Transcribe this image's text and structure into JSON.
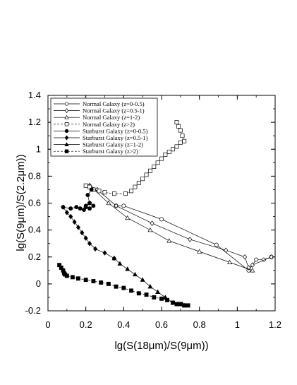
{
  "chart_data": {
    "type": "line",
    "xlabel": "lg(S(18μm)/S(9μm))",
    "ylabel": "lg(S(9μm)/S(2.2μm))",
    "xlim": [
      0,
      1.2
    ],
    "ylim": [
      -0.2,
      1.4
    ],
    "x_ticks": [
      0,
      0.2,
      0.4,
      0.6,
      0.8,
      1,
      1.2
    ],
    "x_tick_labels": [
      "0",
      "0.2",
      "0.4",
      "0.6",
      "0.8",
      "1",
      "1.2"
    ],
    "y_ticks": [
      -0.2,
      0,
      0.2,
      0.4,
      0.6,
      0.8,
      1,
      1.2,
      1.4
    ],
    "y_tick_labels": [
      "-0.2",
      "0",
      "0.2",
      "0.4",
      "0.6",
      "0.8",
      "1",
      "1.2",
      "1.4"
    ],
    "grid": false,
    "legend_position": "top-left",
    "series": [
      {
        "name": "Normal Galaxy (z=0-0.5)",
        "marker": "open-circle",
        "line": "solid",
        "points": [
          [
            0.36,
            0.58
          ],
          [
            0.4,
            0.58
          ],
          [
            0.6,
            0.48
          ],
          [
            0.89,
            0.29
          ],
          [
            1.06,
            0.1
          ],
          [
            1.1,
            0.18
          ],
          [
            1.14,
            0.18
          ],
          [
            1.18,
            0.2
          ]
        ]
      },
      {
        "name": "Normal Galaxy (z=0.5-1)",
        "marker": "open-diamond",
        "line": "solid",
        "points": [
          [
            1.18,
            0.2
          ],
          [
            1.08,
            0.14
          ],
          [
            1.06,
            0.12
          ],
          [
            1.04,
            0.2
          ],
          [
            0.94,
            0.25
          ],
          [
            0.75,
            0.33
          ],
          [
            0.55,
            0.45
          ],
          [
            0.36,
            0.58
          ],
          [
            0.26,
            0.7
          ],
          [
            0.22,
            0.73
          ]
        ]
      },
      {
        "name": "Normal Galaxy (z=1-2)",
        "marker": "open-triangle",
        "line": "solid",
        "points": [
          [
            0.22,
            0.73
          ],
          [
            0.32,
            0.6
          ],
          [
            0.42,
            0.49
          ],
          [
            0.54,
            0.4
          ],
          [
            0.64,
            0.32
          ],
          [
            0.8,
            0.24
          ],
          [
            0.96,
            0.16
          ],
          [
            1.08,
            0.1
          ]
        ]
      },
      {
        "name": "Normal Galaxy (z>2)",
        "marker": "open-square",
        "line": "dashed",
        "points": [
          [
            0.2,
            0.73
          ],
          [
            0.22,
            0.72
          ],
          [
            0.24,
            0.7
          ],
          [
            0.27,
            0.69
          ],
          [
            0.3,
            0.68
          ],
          [
            0.35,
            0.67
          ],
          [
            0.41,
            0.67
          ],
          [
            0.44,
            0.69
          ],
          [
            0.46,
            0.72
          ],
          [
            0.48,
            0.75
          ],
          [
            0.5,
            0.78
          ],
          [
            0.52,
            0.81
          ],
          [
            0.54,
            0.84
          ],
          [
            0.56,
            0.87
          ],
          [
            0.58,
            0.9
          ],
          [
            0.6,
            0.93
          ],
          [
            0.62,
            0.96
          ],
          [
            0.64,
            0.98
          ],
          [
            0.66,
            1.0
          ],
          [
            0.68,
            1.02
          ],
          [
            0.7,
            1.05
          ],
          [
            0.72,
            1.06
          ],
          [
            0.71,
            1.1
          ],
          [
            0.7,
            1.14
          ],
          [
            0.69,
            1.17
          ],
          [
            0.68,
            1.2
          ]
        ]
      },
      {
        "name": "Starburst Galaxy (z=0-0.5)",
        "marker": "filled-circle",
        "line": "solid",
        "points": [
          [
            0.08,
            0.57
          ],
          [
            0.12,
            0.56
          ],
          [
            0.15,
            0.57
          ],
          [
            0.17,
            0.56
          ],
          [
            0.19,
            0.55
          ],
          [
            0.2,
            0.58
          ],
          [
            0.22,
            0.6
          ],
          [
            0.24,
            0.58
          ],
          [
            0.22,
            0.56
          ],
          [
            0.2,
            0.57
          ],
          [
            0.22,
            0.6
          ],
          [
            0.21,
            0.66
          ],
          [
            0.23,
            0.7
          ]
        ]
      },
      {
        "name": "Starburst Galaxy (z=0.5-1)",
        "marker": "filled-diamond",
        "line": "solid",
        "points": [
          [
            0.08,
            0.57
          ],
          [
            0.1,
            0.53
          ],
          [
            0.12,
            0.5
          ],
          [
            0.14,
            0.46
          ],
          [
            0.16,
            0.42
          ],
          [
            0.18,
            0.38
          ],
          [
            0.2,
            0.34
          ],
          [
            0.22,
            0.3
          ],
          [
            0.25,
            0.26
          ],
          [
            0.3,
            0.23
          ],
          [
            0.35,
            0.19
          ]
        ]
      },
      {
        "name": "Starburst Galaxy (z=1-2)",
        "marker": "filled-triangle",
        "line": "solid",
        "points": [
          [
            0.35,
            0.19
          ],
          [
            0.38,
            0.15
          ],
          [
            0.42,
            0.11
          ],
          [
            0.46,
            0.07
          ],
          [
            0.5,
            0.03
          ],
          [
            0.54,
            -0.02
          ],
          [
            0.58,
            -0.06
          ],
          [
            0.62,
            -0.1
          ],
          [
            0.66,
            -0.14
          ],
          [
            0.69,
            -0.15
          ],
          [
            0.72,
            -0.16
          ],
          [
            0.66,
            -0.14
          ],
          [
            0.71,
            -0.15
          ]
        ]
      },
      {
        "name": "Starburst Galaxy (z>2)",
        "marker": "filled-square",
        "line": "dashed",
        "points": [
          [
            0.06,
            0.14
          ],
          [
            0.07,
            0.12
          ],
          [
            0.08,
            0.1
          ],
          [
            0.085,
            0.08
          ],
          [
            0.09,
            0.07
          ],
          [
            0.1,
            0.06
          ],
          [
            0.13,
            0.05
          ],
          [
            0.16,
            0.04
          ],
          [
            0.2,
            0.03
          ],
          [
            0.24,
            0.02
          ],
          [
            0.28,
            0.01
          ],
          [
            0.32,
            0.0
          ],
          [
            0.36,
            -0.02
          ],
          [
            0.4,
            -0.03
          ],
          [
            0.44,
            -0.05
          ],
          [
            0.48,
            -0.07
          ],
          [
            0.52,
            -0.08
          ],
          [
            0.56,
            -0.1
          ],
          [
            0.6,
            -0.11
          ],
          [
            0.63,
            -0.12
          ],
          [
            0.66,
            -0.14
          ],
          [
            0.68,
            -0.15
          ],
          [
            0.7,
            -0.15
          ],
          [
            0.72,
            -0.16
          ],
          [
            0.74,
            -0.16
          ]
        ]
      }
    ]
  }
}
